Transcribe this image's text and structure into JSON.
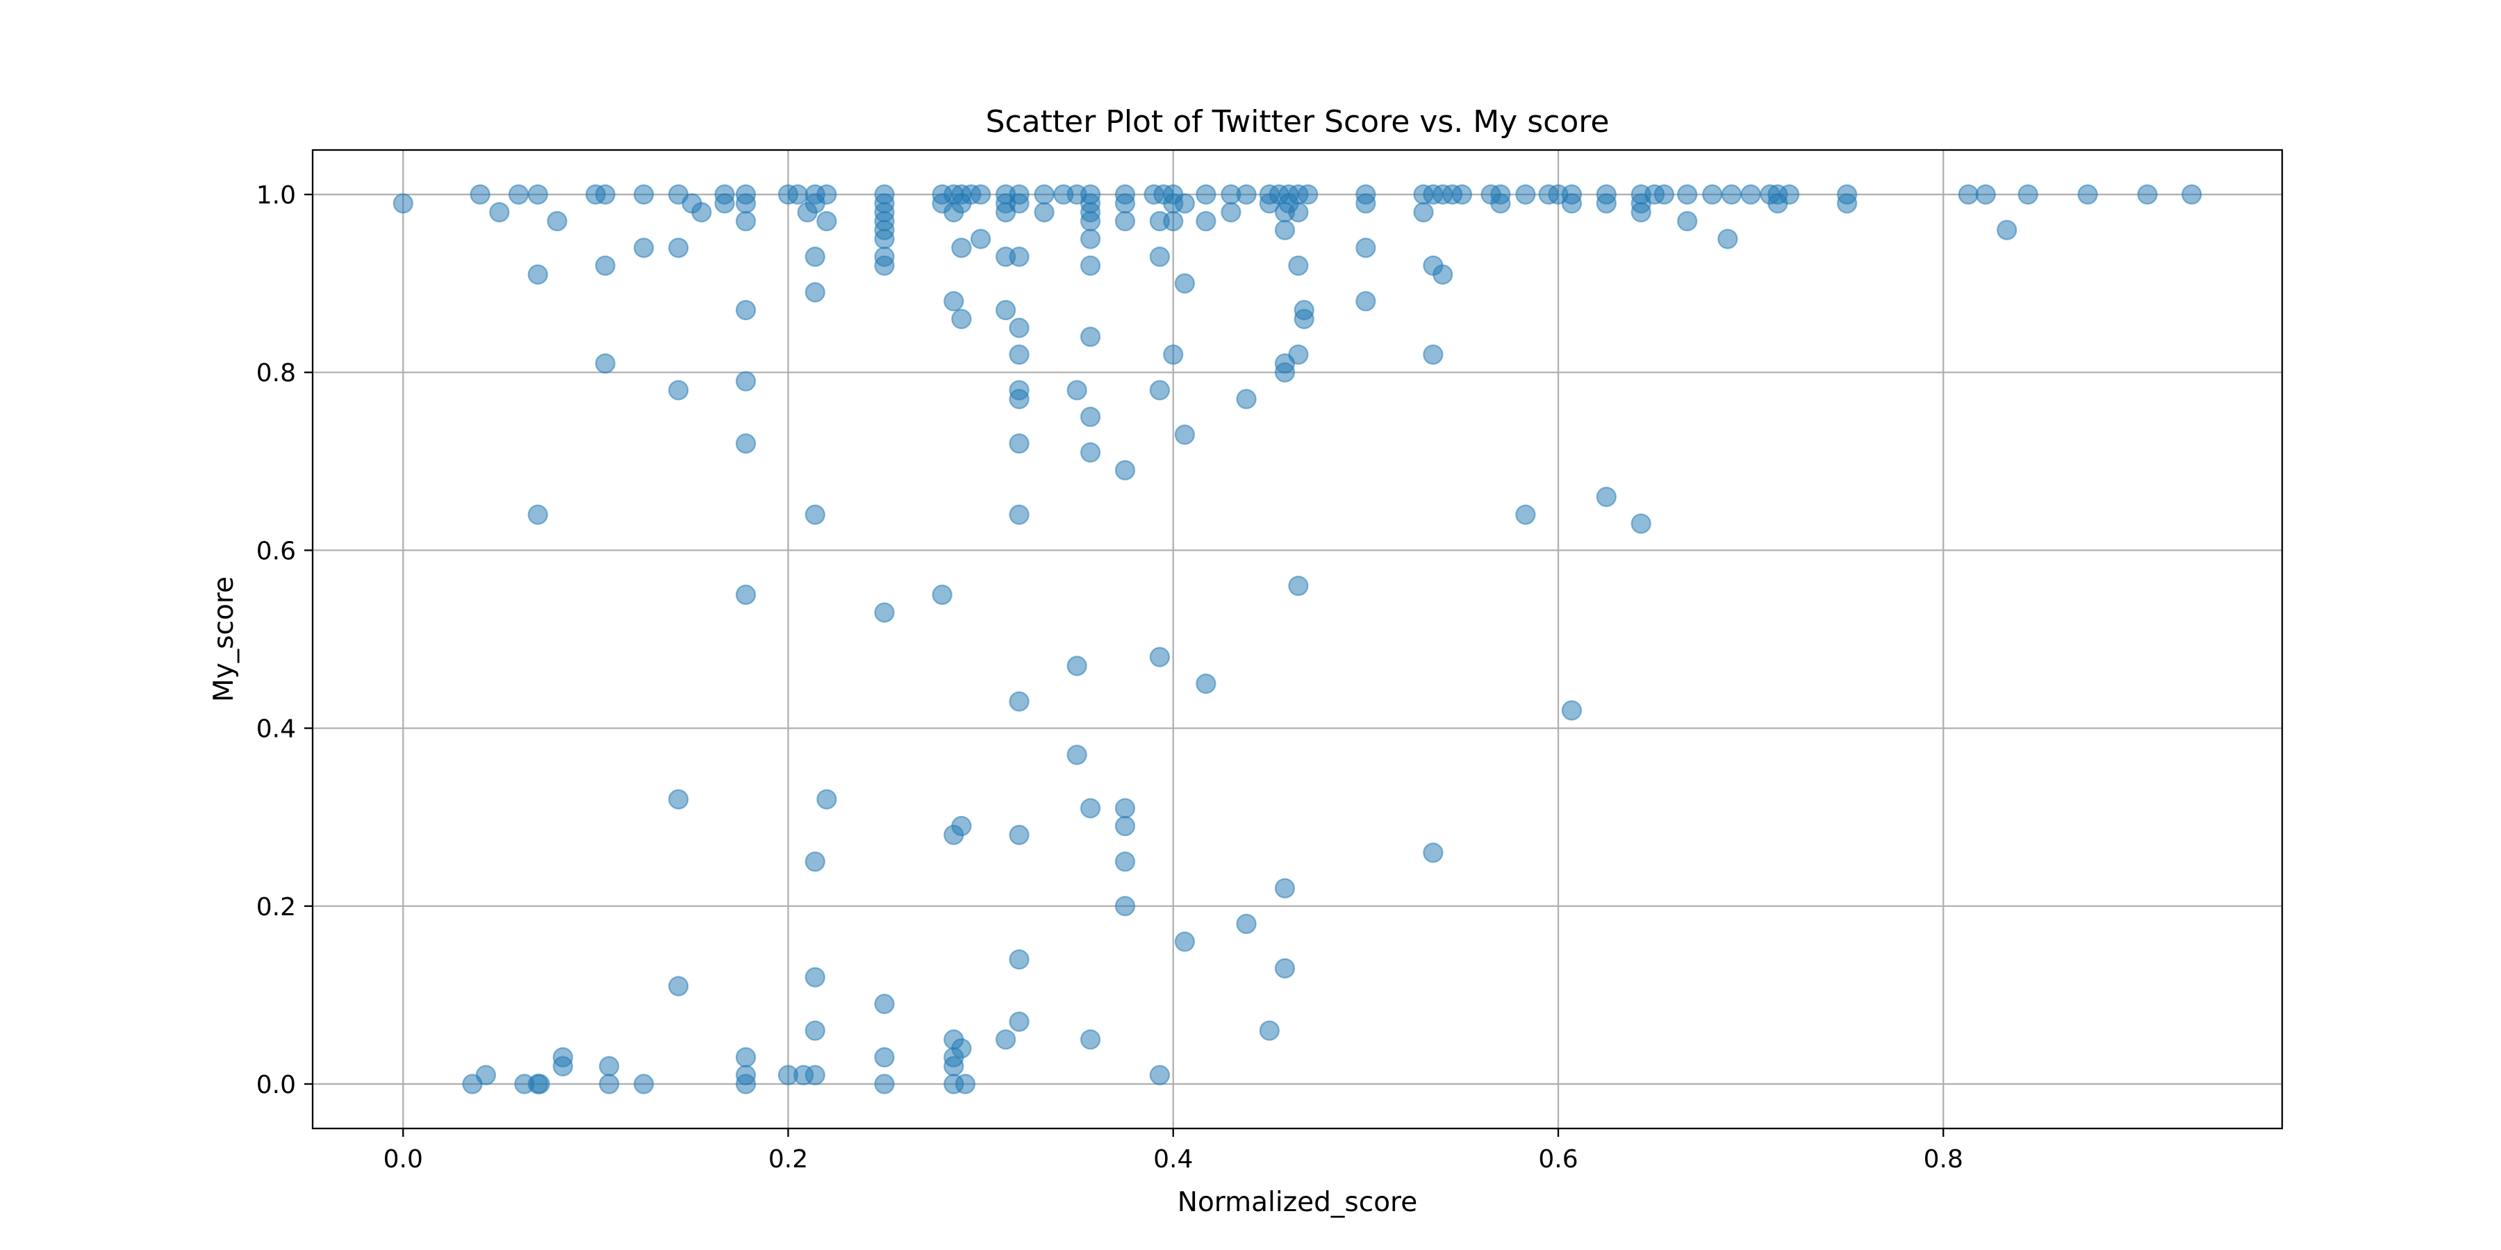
{
  "chart_data": {
    "type": "scatter",
    "title": "Scatter Plot of Twitter Score vs. My score",
    "xlabel": "Normalized_score",
    "ylabel": "My_score",
    "xlim": [
      -0.047,
      0.976
    ],
    "ylim": [
      -0.05,
      1.05
    ],
    "xticks": [
      0.0,
      0.2,
      0.4,
      0.6,
      0.8
    ],
    "xtick_labels": [
      "0.0",
      "0.2",
      "0.4",
      "0.6",
      "0.8"
    ],
    "yticks": [
      0.0,
      0.2,
      0.4,
      0.6,
      0.8,
      1.0
    ],
    "ytick_labels": [
      "0.0",
      "0.2",
      "0.4",
      "0.6",
      "0.8",
      "1.0"
    ],
    "grid": true,
    "marker_color": "#1f77b4",
    "marker_alpha": 0.5,
    "series": [
      {
        "points": [
          [
            0.0,
            0.99
          ],
          [
            0.04,
            1.0
          ],
          [
            0.05,
            0.98
          ],
          [
            0.06,
            1.0
          ],
          [
            0.07,
            1.0
          ],
          [
            0.07,
            0.91
          ],
          [
            0.07,
            0.64
          ],
          [
            0.08,
            0.97
          ],
          [
            0.1,
            1.0
          ],
          [
            0.105,
            1.0
          ],
          [
            0.105,
            0.92
          ],
          [
            0.105,
            0.81
          ],
          [
            0.125,
            1.0
          ],
          [
            0.125,
            0.94
          ],
          [
            0.143,
            1.0
          ],
          [
            0.15,
            0.99
          ],
          [
            0.155,
            0.98
          ],
          [
            0.143,
            0.94
          ],
          [
            0.143,
            0.78
          ],
          [
            0.167,
            1.0
          ],
          [
            0.167,
            0.99
          ],
          [
            0.178,
            1.0
          ],
          [
            0.178,
            0.99
          ],
          [
            0.178,
            0.97
          ],
          [
            0.178,
            0.87
          ],
          [
            0.178,
            0.79
          ],
          [
            0.178,
            0.72
          ],
          [
            0.178,
            0.55
          ],
          [
            0.2,
            1.0
          ],
          [
            0.205,
            1.0
          ],
          [
            0.21,
            0.98
          ],
          [
            0.214,
            1.0
          ],
          [
            0.214,
            0.99
          ],
          [
            0.22,
            1.0
          ],
          [
            0.22,
            0.97
          ],
          [
            0.214,
            0.93
          ],
          [
            0.214,
            0.89
          ],
          [
            0.214,
            0.64
          ],
          [
            0.25,
            1.0
          ],
          [
            0.25,
            0.99
          ],
          [
            0.25,
            0.98
          ],
          [
            0.25,
            0.97
          ],
          [
            0.25,
            0.96
          ],
          [
            0.25,
            0.95
          ],
          [
            0.25,
            0.93
          ],
          [
            0.25,
            0.92
          ],
          [
            0.25,
            0.53
          ],
          [
            0.28,
            1.0
          ],
          [
            0.28,
            0.99
          ],
          [
            0.286,
            1.0
          ],
          [
            0.286,
            0.98
          ],
          [
            0.29,
            1.0
          ],
          [
            0.29,
            0.99
          ],
          [
            0.295,
            1.0
          ],
          [
            0.3,
            1.0
          ],
          [
            0.3,
            0.95
          ],
          [
            0.29,
            0.94
          ],
          [
            0.286,
            0.88
          ],
          [
            0.29,
            0.86
          ],
          [
            0.28,
            0.55
          ],
          [
            0.313,
            1.0
          ],
          [
            0.313,
            0.99
          ],
          [
            0.313,
            0.98
          ],
          [
            0.32,
            1.0
          ],
          [
            0.32,
            0.99
          ],
          [
            0.313,
            0.93
          ],
          [
            0.32,
            0.93
          ],
          [
            0.313,
            0.87
          ],
          [
            0.32,
            0.85
          ],
          [
            0.32,
            0.82
          ],
          [
            0.32,
            0.78
          ],
          [
            0.32,
            0.77
          ],
          [
            0.32,
            0.72
          ],
          [
            0.32,
            0.64
          ],
          [
            0.32,
            0.43
          ],
          [
            0.333,
            1.0
          ],
          [
            0.333,
            0.98
          ],
          [
            0.343,
            1.0
          ],
          [
            0.35,
            1.0
          ],
          [
            0.357,
            1.0
          ],
          [
            0.357,
            0.99
          ],
          [
            0.357,
            0.98
          ],
          [
            0.357,
            0.97
          ],
          [
            0.357,
            0.95
          ],
          [
            0.357,
            0.92
          ],
          [
            0.357,
            0.84
          ],
          [
            0.35,
            0.78
          ],
          [
            0.357,
            0.75
          ],
          [
            0.357,
            0.71
          ],
          [
            0.35,
            0.47
          ],
          [
            0.35,
            0.37
          ],
          [
            0.375,
            1.0
          ],
          [
            0.375,
            0.99
          ],
          [
            0.375,
            0.97
          ],
          [
            0.375,
            0.69
          ],
          [
            0.39,
            1.0
          ],
          [
            0.395,
            1.0
          ],
          [
            0.4,
            1.0
          ],
          [
            0.4,
            0.99
          ],
          [
            0.393,
            0.97
          ],
          [
            0.4,
            0.97
          ],
          [
            0.393,
            0.93
          ],
          [
            0.406,
            0.99
          ],
          [
            0.406,
            0.9
          ],
          [
            0.4,
            0.82
          ],
          [
            0.393,
            0.78
          ],
          [
            0.406,
            0.73
          ],
          [
            0.393,
            0.48
          ],
          [
            0.417,
            1.0
          ],
          [
            0.417,
            0.97
          ],
          [
            0.417,
            0.45
          ],
          [
            0.43,
            1.0
          ],
          [
            0.43,
            0.98
          ],
          [
            0.438,
            1.0
          ],
          [
            0.438,
            0.77
          ],
          [
            0.45,
            1.0
          ],
          [
            0.45,
            0.99
          ],
          [
            0.455,
            1.0
          ],
          [
            0.458,
            0.98
          ],
          [
            0.46,
            1.0
          ],
          [
            0.46,
            0.99
          ],
          [
            0.465,
            1.0
          ],
          [
            0.465,
            0.98
          ],
          [
            0.47,
            1.0
          ],
          [
            0.458,
            0.96
          ],
          [
            0.465,
            0.92
          ],
          [
            0.468,
            0.87
          ],
          [
            0.468,
            0.86
          ],
          [
            0.465,
            0.82
          ],
          [
            0.458,
            0.81
          ],
          [
            0.458,
            0.8
          ],
          [
            0.465,
            0.56
          ],
          [
            0.5,
            1.0
          ],
          [
            0.5,
            0.99
          ],
          [
            0.5,
            0.94
          ],
          [
            0.5,
            0.88
          ],
          [
            0.53,
            1.0
          ],
          [
            0.53,
            0.98
          ],
          [
            0.535,
            1.0
          ],
          [
            0.54,
            1.0
          ],
          [
            0.545,
            1.0
          ],
          [
            0.55,
            1.0
          ],
          [
            0.535,
            0.92
          ],
          [
            0.54,
            0.91
          ],
          [
            0.535,
            0.82
          ],
          [
            0.565,
            1.0
          ],
          [
            0.57,
            1.0
          ],
          [
            0.57,
            0.99
          ],
          [
            0.583,
            1.0
          ],
          [
            0.595,
            1.0
          ],
          [
            0.6,
            1.0
          ],
          [
            0.583,
            0.64
          ],
          [
            0.607,
            1.0
          ],
          [
            0.607,
            0.99
          ],
          [
            0.607,
            0.42
          ],
          [
            0.625,
            1.0
          ],
          [
            0.625,
            0.99
          ],
          [
            0.625,
            0.66
          ],
          [
            0.643,
            1.0
          ],
          [
            0.643,
            0.99
          ],
          [
            0.643,
            0.98
          ],
          [
            0.65,
            1.0
          ],
          [
            0.643,
            0.63
          ],
          [
            0.655,
            1.0
          ],
          [
            0.667,
            1.0
          ],
          [
            0.667,
            0.97
          ],
          [
            0.68,
            1.0
          ],
          [
            0.69,
            1.0
          ],
          [
            0.688,
            0.95
          ],
          [
            0.7,
            1.0
          ],
          [
            0.71,
            1.0
          ],
          [
            0.714,
            1.0
          ],
          [
            0.714,
            0.99
          ],
          [
            0.72,
            1.0
          ],
          [
            0.75,
            1.0
          ],
          [
            0.75,
            0.99
          ],
          [
            0.813,
            1.0
          ],
          [
            0.822,
            1.0
          ],
          [
            0.833,
            0.96
          ],
          [
            0.844,
            1.0
          ],
          [
            0.875,
            1.0
          ],
          [
            0.906,
            1.0
          ],
          [
            0.929,
            1.0
          ],
          [
            0.036,
            0.0
          ],
          [
            0.043,
            0.01
          ],
          [
            0.063,
            0.0
          ],
          [
            0.07,
            0.0
          ],
          [
            0.071,
            0.0
          ],
          [
            0.083,
            0.03
          ],
          [
            0.083,
            0.02
          ],
          [
            0.107,
            0.02
          ],
          [
            0.107,
            0.0
          ],
          [
            0.125,
            0.0
          ],
          [
            0.143,
            0.32
          ],
          [
            0.143,
            0.11
          ],
          [
            0.178,
            0.03
          ],
          [
            0.178,
            0.01
          ],
          [
            0.178,
            0.0
          ],
          [
            0.2,
            0.01
          ],
          [
            0.208,
            0.01
          ],
          [
            0.214,
            0.01
          ],
          [
            0.214,
            0.25
          ],
          [
            0.214,
            0.12
          ],
          [
            0.214,
            0.06
          ],
          [
            0.22,
            0.32
          ],
          [
            0.25,
            0.09
          ],
          [
            0.25,
            0.03
          ],
          [
            0.25,
            0.0
          ],
          [
            0.286,
            0.28
          ],
          [
            0.29,
            0.29
          ],
          [
            0.286,
            0.05
          ],
          [
            0.286,
            0.03
          ],
          [
            0.286,
            0.02
          ],
          [
            0.29,
            0.04
          ],
          [
            0.286,
            0.0
          ],
          [
            0.292,
            0.0
          ],
          [
            0.313,
            0.05
          ],
          [
            0.32,
            0.28
          ],
          [
            0.32,
            0.14
          ],
          [
            0.32,
            0.07
          ],
          [
            0.357,
            0.31
          ],
          [
            0.357,
            0.05
          ],
          [
            0.375,
            0.31
          ],
          [
            0.375,
            0.29
          ],
          [
            0.375,
            0.25
          ],
          [
            0.375,
            0.2
          ],
          [
            0.393,
            0.01
          ],
          [
            0.406,
            0.16
          ],
          [
            0.438,
            0.18
          ],
          [
            0.45,
            0.06
          ],
          [
            0.458,
            0.22
          ],
          [
            0.458,
            0.13
          ],
          [
            0.535,
            0.26
          ]
        ]
      }
    ]
  }
}
